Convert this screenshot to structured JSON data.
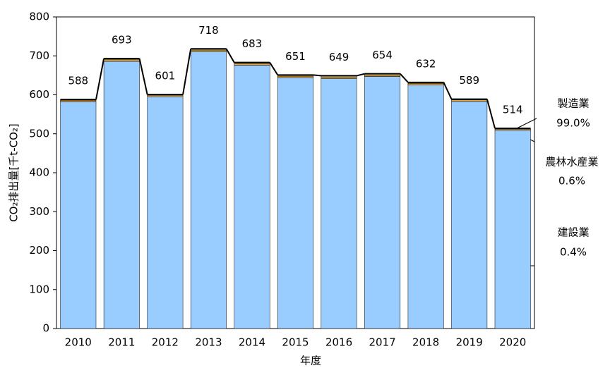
{
  "chart_data": {
    "type": "stacked_bar",
    "x_label": "年度",
    "y_label": "CO₂排出量[千t-CO₂]",
    "categories": [
      "2010",
      "2011",
      "2012",
      "2013",
      "2014",
      "2015",
      "2016",
      "2017",
      "2018",
      "2019",
      "2020"
    ],
    "series": [
      {
        "name": "製造業",
        "color": "#99ccff",
        "values": [
          582,
          686,
          595,
          711,
          676,
          644,
          642,
          647,
          625,
          583,
          509
        ]
      },
      {
        "name": "農林水産業",
        "color": "#e8a33c",
        "values": [
          4,
          4,
          4,
          4,
          4,
          4,
          4,
          4,
          4,
          4,
          3
        ]
      },
      {
        "name": "建設業",
        "color": "#ffff99",
        "values": [
          2,
          3,
          2,
          3,
          3,
          3,
          3,
          3,
          3,
          2,
          2
        ]
      }
    ],
    "totals": [
      588,
      693,
      601,
      718,
      683,
      651,
      649,
      654,
      632,
      589,
      514
    ],
    "annotations": [
      {
        "label": "建設業",
        "text": "0.4%"
      },
      {
        "label": "農林水産業",
        "text": "0.6%"
      },
      {
        "label": "製造業",
        "text": "99.0%"
      }
    ],
    "ylim": [
      0,
      800
    ],
    "yticks": [
      0,
      100,
      200,
      300,
      400,
      500,
      600,
      700,
      800
    ]
  }
}
